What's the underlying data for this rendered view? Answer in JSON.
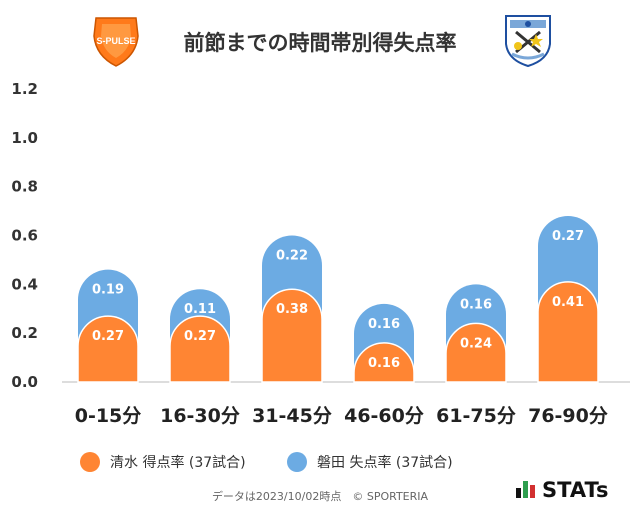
{
  "title": "前節までの時間帯別得失点率",
  "team_home_logo": {
    "icon": "s-pulse-crest",
    "text": "S-PULSE"
  },
  "team_away_logo": {
    "icon": "jubilo-crest"
  },
  "colors": {
    "scored": "#ff8533",
    "conceded": "#6cabe3",
    "axis": "#bbbbbb"
  },
  "chart_data": {
    "type": "bar",
    "stacked": true,
    "title": "前節までの時間帯別得失点率",
    "categories": [
      "0-15分",
      "16-30分",
      "31-45分",
      "46-60分",
      "61-75分",
      "76-90分"
    ],
    "series": [
      {
        "name": "清水 得点率 (37試合)",
        "color": "#ff8533",
        "values": [
          0.27,
          0.27,
          0.38,
          0.16,
          0.24,
          0.41
        ]
      },
      {
        "name": "磐田 失点率 (37試合)",
        "color": "#6cabe3",
        "values": [
          0.19,
          0.11,
          0.22,
          0.16,
          0.16,
          0.27
        ]
      }
    ],
    "value_labels": [
      [
        "0.27",
        "0.27",
        "0.38",
        "0.16",
        "0.24",
        "0.41"
      ],
      [
        "0.19",
        "0.11",
        "0.22",
        "0.16",
        "0.16",
        "0.27"
      ]
    ],
    "yticks": [
      "0.0",
      "0.2",
      "0.4",
      "0.6",
      "0.8",
      "1.0",
      "1.2"
    ],
    "ylim": [
      0,
      1.2
    ],
    "xlabel": "",
    "ylabel": "",
    "legend_position": "bottom"
  },
  "footnote": "データは2023/10/02時点　© SPORTERIA",
  "brand": {
    "icon": "stats-bars-icon",
    "text": "STATs"
  }
}
